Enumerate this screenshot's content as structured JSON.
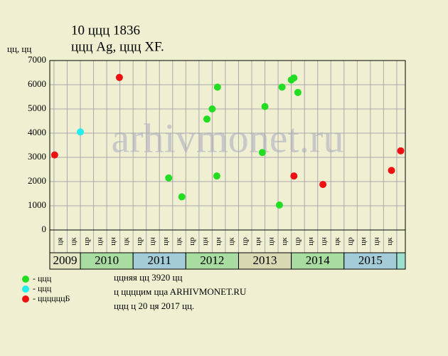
{
  "chart_data": {
    "type": "scatter",
    "title": "10 ццц 1836",
    "subtitle": "ццц Ag, ццц XF.",
    "y_label": "цц, цц",
    "watermark": "arhivmonet.ru",
    "ylim": [
      0,
      7000
    ],
    "yticks": [
      0,
      1000,
      2000,
      3000,
      4000,
      5000,
      6000,
      7000
    ],
    "xlim": [
      -0.32,
      26.65
    ],
    "grid": true,
    "quarters": [
      "ця",
      "цк",
      "цр",
      "цн",
      "цн",
      "цк",
      "цр",
      "цн",
      "цн",
      "цк",
      "цр",
      "цн",
      "цн",
      "цк",
      "цр",
      "цн",
      "цн",
      "цк",
      "цр",
      "цн",
      "цн",
      "цк",
      "цр",
      "цн",
      "цн",
      "цк"
    ],
    "years": [
      {
        "label": "2009",
        "color": "#e6e6c4"
      },
      {
        "label": "2010",
        "color": "#a8dca0"
      },
      {
        "label": "2011",
        "color": "#a4ccd8"
      },
      {
        "label": "2012",
        "color": "#a8dca0"
      },
      {
        "label": "2013",
        "color": "#d8d8b2"
      },
      {
        "label": "2014",
        "color": "#a8dca0"
      },
      {
        "label": "2015",
        "color": "#a4ccd8"
      }
    ],
    "series": [
      {
        "name": "- ццц",
        "color": "#22dd22",
        "x": [
          8.7,
          9.7,
          11.6,
          12.0,
          12.35,
          12.4,
          15.8,
          16.0,
          17.1,
          17.3,
          18.0,
          18.2,
          18.5
        ],
        "values": [
          2150,
          1370,
          4580,
          5000,
          2230,
          5900,
          3200,
          5100,
          1030,
          5900,
          6200,
          6280,
          5680
        ]
      },
      {
        "name": "- ццц",
        "color": "#22eeee",
        "x": [
          2.0
        ],
        "values": [
          4050
        ]
      },
      {
        "name": "- ццццццБ",
        "color": "#ee1111",
        "x": [
          0.05,
          4.96,
          18.2,
          20.4,
          25.6,
          26.3
        ],
        "values": [
          3100,
          6300,
          2230,
          1880,
          2460,
          3270
        ]
      }
    ],
    "notes": [
      "ццняя цц 3920 цц",
      "ц ццццим ццa ARHIVMONET.RU",
      "ццц ц 20 ця 2017 цц."
    ]
  }
}
